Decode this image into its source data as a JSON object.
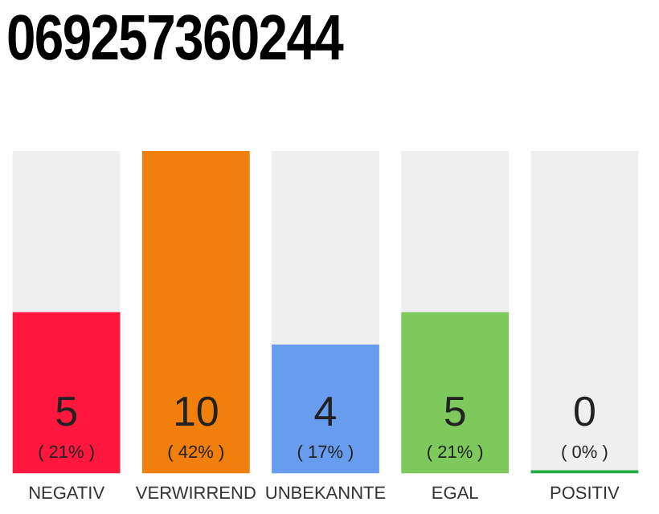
{
  "chart_data": {
    "type": "bar",
    "title": "069257360244",
    "categories": [
      "NEGATIV",
      "VERWIRREND",
      "UNBEKANNTE",
      "EGAL",
      "POSITIV"
    ],
    "values": [
      5,
      10,
      4,
      5,
      0
    ],
    "colors": [
      "#ff173d",
      "#f07f0c",
      "#679cef",
      "#7dc95c",
      "#22aa44"
    ],
    "value_labels": [
      "5\n( 21% )",
      "10\n( 42% )",
      "4\n( 17% )",
      "5\n( 21% )",
      "0\n( 0% )"
    ],
    "ylim": [
      0,
      10
    ],
    "tick_labels": "x",
    "grid": false,
    "legend": false
  }
}
